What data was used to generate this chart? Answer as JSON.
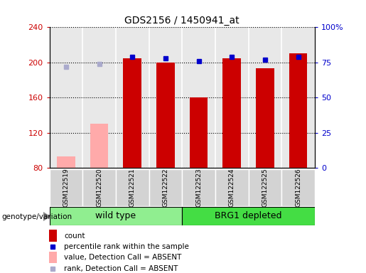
{
  "title": "GDS2156 / 1450941_at",
  "samples": [
    "GSM122519",
    "GSM122520",
    "GSM122521",
    "GSM122522",
    "GSM122523",
    "GSM122524",
    "GSM122525",
    "GSM122526"
  ],
  "count_values": [
    null,
    null,
    205,
    200,
    160,
    205,
    193,
    210
  ],
  "count_absent": [
    93,
    130,
    null,
    null,
    null,
    null,
    null,
    null
  ],
  "percentile_values": [
    null,
    null,
    79,
    78,
    76,
    79,
    77,
    79
  ],
  "percentile_absent": [
    72,
    74,
    null,
    null,
    null,
    null,
    null,
    null
  ],
  "groups": [
    {
      "label": "wild type",
      "indices": [
        0,
        1,
        2,
        3
      ],
      "color": "#90ee90"
    },
    {
      "label": "BRG1 depleted",
      "indices": [
        4,
        5,
        6,
        7
      ],
      "color": "#44dd44"
    }
  ],
  "ylim_left": [
    80,
    240
  ],
  "ylim_right": [
    0,
    100
  ],
  "yticks_left": [
    80,
    120,
    160,
    200,
    240
  ],
  "yticks_right": [
    0,
    25,
    50,
    75,
    100
  ],
  "ytick_right_labels": [
    "0",
    "25",
    "50",
    "75",
    "100%"
  ],
  "left_color": "#cc0000",
  "right_color": "#0000cc",
  "bar_color_present": "#cc0000",
  "bar_color_absent": "#ffaaaa",
  "dot_color_present": "#0000cc",
  "dot_color_absent": "#aaaacc",
  "plot_bg": "#e8e8e8",
  "genotype_label": "genotype/variation",
  "legend_items": [
    {
      "label": "count",
      "color": "#cc0000",
      "type": "bar"
    },
    {
      "label": "percentile rank within the sample",
      "color": "#0000cc",
      "type": "dot"
    },
    {
      "label": "value, Detection Call = ABSENT",
      "color": "#ffaaaa",
      "type": "bar"
    },
    {
      "label": "rank, Detection Call = ABSENT",
      "color": "#aaaacc",
      "type": "dot"
    }
  ]
}
